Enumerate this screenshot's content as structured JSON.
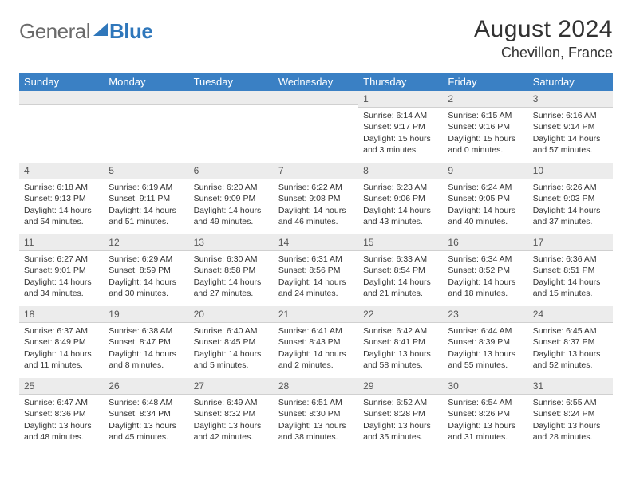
{
  "logo": {
    "part1": "General",
    "part2": "Blue"
  },
  "title": "August 2024",
  "location": "Chevillon, France",
  "colors": {
    "header_bg": "#3a80c4",
    "header_text": "#ffffff",
    "daynum_bg": "#ececec",
    "daynum_border": "#d0d0d0",
    "text": "#333333",
    "logo_gray": "#6b6b6b",
    "logo_blue": "#2f77bb"
  },
  "day_headers": [
    "Sunday",
    "Monday",
    "Tuesday",
    "Wednesday",
    "Thursday",
    "Friday",
    "Saturday"
  ],
  "weeks": [
    [
      {
        "n": "",
        "sr": "",
        "ss": "",
        "dl": ""
      },
      {
        "n": "",
        "sr": "",
        "ss": "",
        "dl": ""
      },
      {
        "n": "",
        "sr": "",
        "ss": "",
        "dl": ""
      },
      {
        "n": "",
        "sr": "",
        "ss": "",
        "dl": ""
      },
      {
        "n": "1",
        "sr": "Sunrise: 6:14 AM",
        "ss": "Sunset: 9:17 PM",
        "dl": "Daylight: 15 hours and 3 minutes."
      },
      {
        "n": "2",
        "sr": "Sunrise: 6:15 AM",
        "ss": "Sunset: 9:16 PM",
        "dl": "Daylight: 15 hours and 0 minutes."
      },
      {
        "n": "3",
        "sr": "Sunrise: 6:16 AM",
        "ss": "Sunset: 9:14 PM",
        "dl": "Daylight: 14 hours and 57 minutes."
      }
    ],
    [
      {
        "n": "4",
        "sr": "Sunrise: 6:18 AM",
        "ss": "Sunset: 9:13 PM",
        "dl": "Daylight: 14 hours and 54 minutes."
      },
      {
        "n": "5",
        "sr": "Sunrise: 6:19 AM",
        "ss": "Sunset: 9:11 PM",
        "dl": "Daylight: 14 hours and 51 minutes."
      },
      {
        "n": "6",
        "sr": "Sunrise: 6:20 AM",
        "ss": "Sunset: 9:09 PM",
        "dl": "Daylight: 14 hours and 49 minutes."
      },
      {
        "n": "7",
        "sr": "Sunrise: 6:22 AM",
        "ss": "Sunset: 9:08 PM",
        "dl": "Daylight: 14 hours and 46 minutes."
      },
      {
        "n": "8",
        "sr": "Sunrise: 6:23 AM",
        "ss": "Sunset: 9:06 PM",
        "dl": "Daylight: 14 hours and 43 minutes."
      },
      {
        "n": "9",
        "sr": "Sunrise: 6:24 AM",
        "ss": "Sunset: 9:05 PM",
        "dl": "Daylight: 14 hours and 40 minutes."
      },
      {
        "n": "10",
        "sr": "Sunrise: 6:26 AM",
        "ss": "Sunset: 9:03 PM",
        "dl": "Daylight: 14 hours and 37 minutes."
      }
    ],
    [
      {
        "n": "11",
        "sr": "Sunrise: 6:27 AM",
        "ss": "Sunset: 9:01 PM",
        "dl": "Daylight: 14 hours and 34 minutes."
      },
      {
        "n": "12",
        "sr": "Sunrise: 6:29 AM",
        "ss": "Sunset: 8:59 PM",
        "dl": "Daylight: 14 hours and 30 minutes."
      },
      {
        "n": "13",
        "sr": "Sunrise: 6:30 AM",
        "ss": "Sunset: 8:58 PM",
        "dl": "Daylight: 14 hours and 27 minutes."
      },
      {
        "n": "14",
        "sr": "Sunrise: 6:31 AM",
        "ss": "Sunset: 8:56 PM",
        "dl": "Daylight: 14 hours and 24 minutes."
      },
      {
        "n": "15",
        "sr": "Sunrise: 6:33 AM",
        "ss": "Sunset: 8:54 PM",
        "dl": "Daylight: 14 hours and 21 minutes."
      },
      {
        "n": "16",
        "sr": "Sunrise: 6:34 AM",
        "ss": "Sunset: 8:52 PM",
        "dl": "Daylight: 14 hours and 18 minutes."
      },
      {
        "n": "17",
        "sr": "Sunrise: 6:36 AM",
        "ss": "Sunset: 8:51 PM",
        "dl": "Daylight: 14 hours and 15 minutes."
      }
    ],
    [
      {
        "n": "18",
        "sr": "Sunrise: 6:37 AM",
        "ss": "Sunset: 8:49 PM",
        "dl": "Daylight: 14 hours and 11 minutes."
      },
      {
        "n": "19",
        "sr": "Sunrise: 6:38 AM",
        "ss": "Sunset: 8:47 PM",
        "dl": "Daylight: 14 hours and 8 minutes."
      },
      {
        "n": "20",
        "sr": "Sunrise: 6:40 AM",
        "ss": "Sunset: 8:45 PM",
        "dl": "Daylight: 14 hours and 5 minutes."
      },
      {
        "n": "21",
        "sr": "Sunrise: 6:41 AM",
        "ss": "Sunset: 8:43 PM",
        "dl": "Daylight: 14 hours and 2 minutes."
      },
      {
        "n": "22",
        "sr": "Sunrise: 6:42 AM",
        "ss": "Sunset: 8:41 PM",
        "dl": "Daylight: 13 hours and 58 minutes."
      },
      {
        "n": "23",
        "sr": "Sunrise: 6:44 AM",
        "ss": "Sunset: 8:39 PM",
        "dl": "Daylight: 13 hours and 55 minutes."
      },
      {
        "n": "24",
        "sr": "Sunrise: 6:45 AM",
        "ss": "Sunset: 8:37 PM",
        "dl": "Daylight: 13 hours and 52 minutes."
      }
    ],
    [
      {
        "n": "25",
        "sr": "Sunrise: 6:47 AM",
        "ss": "Sunset: 8:36 PM",
        "dl": "Daylight: 13 hours and 48 minutes."
      },
      {
        "n": "26",
        "sr": "Sunrise: 6:48 AM",
        "ss": "Sunset: 8:34 PM",
        "dl": "Daylight: 13 hours and 45 minutes."
      },
      {
        "n": "27",
        "sr": "Sunrise: 6:49 AM",
        "ss": "Sunset: 8:32 PM",
        "dl": "Daylight: 13 hours and 42 minutes."
      },
      {
        "n": "28",
        "sr": "Sunrise: 6:51 AM",
        "ss": "Sunset: 8:30 PM",
        "dl": "Daylight: 13 hours and 38 minutes."
      },
      {
        "n": "29",
        "sr": "Sunrise: 6:52 AM",
        "ss": "Sunset: 8:28 PM",
        "dl": "Daylight: 13 hours and 35 minutes."
      },
      {
        "n": "30",
        "sr": "Sunrise: 6:54 AM",
        "ss": "Sunset: 8:26 PM",
        "dl": "Daylight: 13 hours and 31 minutes."
      },
      {
        "n": "31",
        "sr": "Sunrise: 6:55 AM",
        "ss": "Sunset: 8:24 PM",
        "dl": "Daylight: 13 hours and 28 minutes."
      }
    ]
  ]
}
